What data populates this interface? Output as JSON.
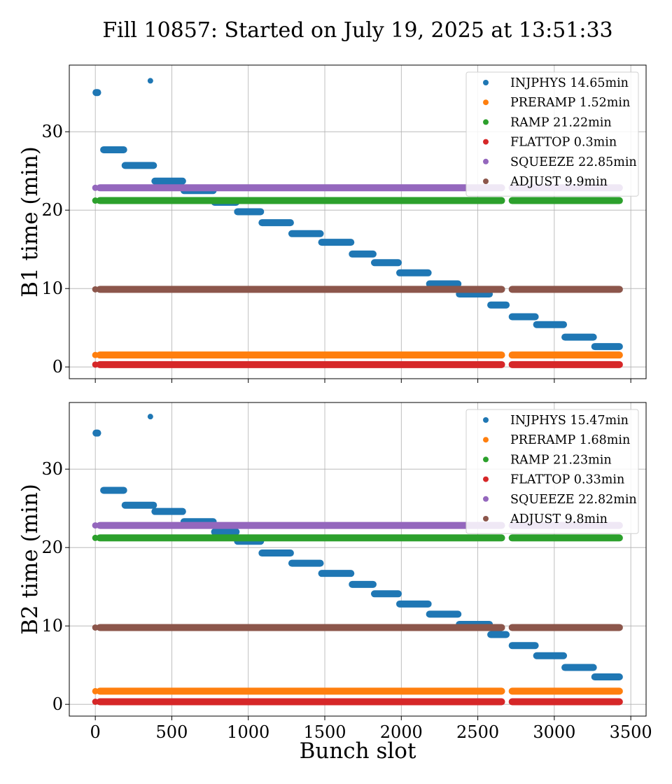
{
  "figure": {
    "title": "Fill 10857: Started on July 19, 2025 at 13:51:33",
    "xlabel": "Bunch slot"
  },
  "colors": {
    "INJPHYS": "#1f77b4",
    "PRERAMP": "#ff7f0e",
    "RAMP": "#2ca02c",
    "FLATTOP": "#d62728",
    "SQUEEZE": "#9467bd",
    "ADJUST": "#8c564b",
    "grid": "#b0b0b0"
  },
  "chart_data": [
    {
      "type": "scatter",
      "ylabel": "B1 time (min)",
      "xlim": [
        -170,
        3600
      ],
      "ylim": [
        -1.5,
        38.5
      ],
      "xticks": [
        0,
        500,
        1000,
        1500,
        2000,
        2500,
        3000,
        3500
      ],
      "yticks": [
        0,
        10,
        20,
        30
      ],
      "show_xticklabels": false,
      "grid": true,
      "legend_position": "top-right",
      "gaps": [
        [
          2660,
          2720
        ]
      ],
      "series": [
        {
          "name": "INJPHYS",
          "legend": "INJPHYS 14.65min",
          "color": "#1f77b4",
          "kind": "steps",
          "points": [
            [
              10,
              35.0
            ],
            [
              360,
              36.5
            ]
          ],
          "segments": [
            [
              0,
              20,
              35.0
            ],
            [
              50,
              190,
              27.7
            ],
            [
              190,
              385,
              25.7
            ],
            [
              385,
              575,
              23.7
            ],
            [
              575,
              775,
              22.5
            ],
            [
              775,
              925,
              21.0
            ],
            [
              925,
              1085,
              19.8
            ],
            [
              1085,
              1280,
              18.4
            ],
            [
              1280,
              1475,
              17.0
            ],
            [
              1475,
              1675,
              15.9
            ],
            [
              1675,
              1820,
              14.4
            ],
            [
              1820,
              1985,
              13.3
            ],
            [
              1985,
              2180,
              12.0
            ],
            [
              2180,
              2375,
              10.6
            ],
            [
              2375,
              2580,
              9.3
            ],
            [
              2580,
              2690,
              7.9
            ],
            [
              2720,
              2880,
              6.4
            ],
            [
              2880,
              3065,
              5.4
            ],
            [
              3065,
              3260,
              3.8
            ],
            [
              3260,
              3430,
              2.6
            ]
          ]
        },
        {
          "name": "PRERAMP",
          "legend": "PRERAMP 1.52min",
          "color": "#ff7f0e",
          "kind": "band",
          "y": 1.52,
          "x0": 0,
          "x1": 3430
        },
        {
          "name": "RAMP",
          "legend": "RAMP 21.22min",
          "color": "#2ca02c",
          "kind": "band",
          "y": 21.22,
          "x0": 0,
          "x1": 3430
        },
        {
          "name": "FLATTOP",
          "legend": "FLATTOP 0.3min",
          "color": "#d62728",
          "kind": "band",
          "y": 0.3,
          "x0": 0,
          "x1": 3430
        },
        {
          "name": "SQUEEZE",
          "legend": "SQUEEZE 22.85min",
          "color": "#9467bd",
          "kind": "band",
          "y": 22.85,
          "x0": 0,
          "x1": 3430
        },
        {
          "name": "ADJUST",
          "legend": "ADJUST 9.9min",
          "color": "#8c564b",
          "kind": "band",
          "y": 9.9,
          "x0": 0,
          "x1": 3430
        }
      ]
    },
    {
      "type": "scatter",
      "ylabel": "B2 time (min)",
      "xlim": [
        -170,
        3600
      ],
      "ylim": [
        -1.5,
        38.5
      ],
      "xticks": [
        0,
        500,
        1000,
        1500,
        2000,
        2500,
        3000,
        3500
      ],
      "yticks": [
        0,
        10,
        20,
        30
      ],
      "show_xticklabels": true,
      "grid": true,
      "legend_position": "top-right",
      "gaps": [
        [
          2660,
          2720
        ]
      ],
      "series": [
        {
          "name": "INJPHYS",
          "legend": "INJPHYS 15.47min",
          "color": "#1f77b4",
          "kind": "steps",
          "points": [
            [
              10,
              34.6
            ],
            [
              360,
              36.7
            ]
          ],
          "segments": [
            [
              0,
              20,
              34.6
            ],
            [
              50,
              190,
              27.3
            ],
            [
              190,
              385,
              25.4
            ],
            [
              385,
              575,
              24.6
            ],
            [
              575,
              775,
              23.3
            ],
            [
              775,
              925,
              22.0
            ],
            [
              925,
              1085,
              20.8
            ],
            [
              1085,
              1280,
              19.3
            ],
            [
              1280,
              1475,
              18.0
            ],
            [
              1475,
              1675,
              16.7
            ],
            [
              1675,
              1820,
              15.3
            ],
            [
              1820,
              1985,
              14.1
            ],
            [
              1985,
              2180,
              12.8
            ],
            [
              2180,
              2375,
              11.5
            ],
            [
              2375,
              2580,
              10.2
            ],
            [
              2580,
              2690,
              8.9
            ],
            [
              2720,
              2880,
              7.5
            ],
            [
              2880,
              3065,
              6.2
            ],
            [
              3065,
              3260,
              4.7
            ],
            [
              3260,
              3430,
              3.5
            ]
          ]
        },
        {
          "name": "PRERAMP",
          "legend": "PRERAMP 1.68min",
          "color": "#ff7f0e",
          "kind": "band",
          "y": 1.68,
          "x0": 0,
          "x1": 3430
        },
        {
          "name": "RAMP",
          "legend": "RAMP 21.23min",
          "color": "#2ca02c",
          "kind": "band",
          "y": 21.23,
          "x0": 0,
          "x1": 3430
        },
        {
          "name": "FLATTOP",
          "legend": "FLATTOP 0.33min",
          "color": "#d62728",
          "kind": "band",
          "y": 0.33,
          "x0": 0,
          "x1": 3430
        },
        {
          "name": "SQUEEZE",
          "legend": "SQUEEZE 22.82min",
          "color": "#9467bd",
          "kind": "band",
          "y": 22.82,
          "x0": 0,
          "x1": 3430
        },
        {
          "name": "ADJUST",
          "legend": "ADJUST 9.8min",
          "color": "#8c564b",
          "kind": "band",
          "y": 9.8,
          "x0": 0,
          "x1": 3430
        }
      ]
    }
  ]
}
